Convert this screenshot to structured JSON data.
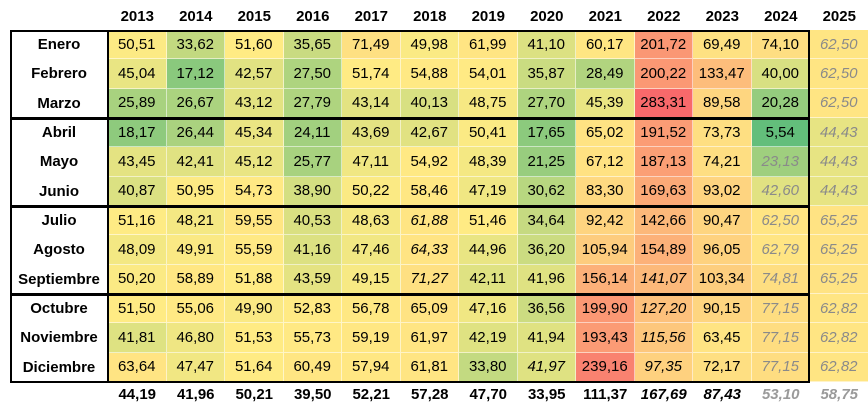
{
  "years": [
    "2013",
    "2014",
    "2015",
    "2016",
    "2017",
    "2018",
    "2019",
    "2020",
    "2021",
    "2022",
    "2023",
    "2024",
    "2025"
  ],
  "months": [
    "Enero",
    "Febrero",
    "Marzo",
    "Abril",
    "Mayo",
    "Junio",
    "Julio",
    "Agosto",
    "Septiembre",
    "Octubre",
    "Noviembre",
    "Diciembre"
  ],
  "rows": [
    [
      "50,51",
      "33,62",
      "51,60",
      "35,65",
      "71,49",
      "49,98",
      "61,99",
      "41,10",
      "60,17",
      "201,72",
      "69,49",
      "74,10",
      "62,50"
    ],
    [
      "45,04",
      "17,12",
      "42,57",
      "27,50",
      "51,74",
      "54,88",
      "54,01",
      "35,87",
      "28,49",
      "200,22",
      "133,47",
      "40,00",
      "62,50"
    ],
    [
      "25,89",
      "26,67",
      "43,12",
      "27,79",
      "43,14",
      "40,13",
      "48,75",
      "27,70",
      "45,39",
      "283,31",
      "89,58",
      "20,28",
      "62,50"
    ],
    [
      "18,17",
      "26,44",
      "45,34",
      "24,11",
      "43,69",
      "42,67",
      "50,41",
      "17,65",
      "65,02",
      "191,52",
      "73,73",
      "5,54",
      "44,43"
    ],
    [
      "43,45",
      "42,41",
      "45,12",
      "25,77",
      "47,11",
      "54,92",
      "48,39",
      "21,25",
      "67,12",
      "187,13",
      "74,21",
      "23,13",
      "44,43"
    ],
    [
      "40,87",
      "50,95",
      "54,73",
      "38,90",
      "50,22",
      "58,46",
      "47,19",
      "30,62",
      "83,30",
      "169,63",
      "93,02",
      "42,60",
      "44,43"
    ],
    [
      "51,16",
      "48,21",
      "59,55",
      "40,53",
      "48,63",
      "61,88",
      "51,46",
      "34,64",
      "92,42",
      "142,66",
      "90,47",
      "62,50",
      "65,25"
    ],
    [
      "48,09",
      "49,91",
      "55,59",
      "41,16",
      "47,46",
      "64,33",
      "44,96",
      "36,20",
      "105,94",
      "154,89",
      "96,05",
      "62,79",
      "65,25"
    ],
    [
      "50,20",
      "58,89",
      "51,88",
      "43,59",
      "49,15",
      "71,27",
      "42,11",
      "41,96",
      "156,14",
      "141,07",
      "103,34",
      "74,81",
      "65,25"
    ],
    [
      "51,50",
      "55,06",
      "49,90",
      "52,83",
      "56,78",
      "65,09",
      "47,16",
      "36,56",
      "199,90",
      "127,20",
      "90,15",
      "77,15",
      "62,82"
    ],
    [
      "41,81",
      "46,80",
      "51,53",
      "55,73",
      "59,19",
      "61,97",
      "42,19",
      "41,94",
      "193,43",
      "115,56",
      "63,45",
      "77,15",
      "62,82"
    ],
    [
      "63,64",
      "47,47",
      "51,64",
      "60,49",
      "57,94",
      "61,81",
      "33,80",
      "41,97",
      "239,16",
      "97,35",
      "72,17",
      "77,15",
      "62,82"
    ]
  ],
  "italic_cells": [
    [
      6,
      5
    ],
    [
      7,
      5
    ],
    [
      8,
      5
    ],
    [
      8,
      9
    ],
    [
      9,
      9
    ],
    [
      10,
      9
    ],
    [
      11,
      9
    ],
    [
      11,
      7
    ]
  ],
  "projected_cells": [
    [
      0,
      12
    ],
    [
      1,
      12
    ],
    [
      2,
      12
    ],
    [
      3,
      12
    ],
    [
      4,
      12
    ],
    [
      5,
      12
    ],
    [
      6,
      12
    ],
    [
      7,
      12
    ],
    [
      8,
      12
    ],
    [
      9,
      12
    ],
    [
      10,
      12
    ],
    [
      11,
      12
    ],
    [
      4,
      11
    ],
    [
      5,
      11
    ],
    [
      6,
      11
    ],
    [
      7,
      11
    ],
    [
      8,
      11
    ],
    [
      9,
      11
    ],
    [
      10,
      11
    ],
    [
      11,
      11
    ]
  ],
  "totals": [
    "44,19",
    "41,96",
    "50,21",
    "39,50",
    "52,21",
    "57,28",
    "47,70",
    "33,95",
    "111,37",
    "167,69",
    "87,43",
    "53,10",
    "58,75"
  ],
  "italic_totals": [
    9,
    10
  ],
  "projected_totals": [
    11,
    12
  ],
  "colors": {
    "low": "#63BE7B",
    "mid": "#FFEB84",
    "high": "#F8696B"
  },
  "scale": {
    "min": 5.54,
    "mid": 51.5,
    "max": 283.31
  }
}
